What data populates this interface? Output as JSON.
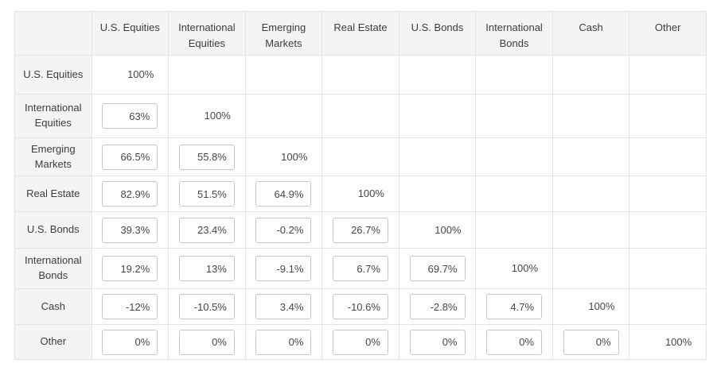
{
  "matrix": {
    "corner_label": "",
    "columns": [
      "U.S. Equities",
      "International Equities",
      "Emerging Markets",
      "Real Estate",
      "U.S. Bonds",
      "International Bonds",
      "Cash",
      "Other"
    ],
    "rows": [
      {
        "label": "U.S. Equities",
        "values": [
          "100%",
          "",
          "",
          "",
          "",
          "",
          "",
          ""
        ]
      },
      {
        "label": "International Equities",
        "values": [
          "63%",
          "100%",
          "",
          "",
          "",
          "",
          "",
          ""
        ]
      },
      {
        "label": "Emerging Markets",
        "values": [
          "66.5%",
          "55.8%",
          "100%",
          "",
          "",
          "",
          "",
          ""
        ]
      },
      {
        "label": "Real Estate",
        "values": [
          "82.9%",
          "51.5%",
          "64.9%",
          "100%",
          "",
          "",
          "",
          ""
        ]
      },
      {
        "label": "U.S. Bonds",
        "values": [
          "39.3%",
          "23.4%",
          "-0.2%",
          "26.7%",
          "100%",
          "",
          "",
          ""
        ]
      },
      {
        "label": "International Bonds",
        "values": [
          "19.2%",
          "13%",
          "-9.1%",
          "6.7%",
          "69.7%",
          "100%",
          "",
          ""
        ]
      },
      {
        "label": "Cash",
        "values": [
          "-12%",
          "-10.5%",
          "3.4%",
          "-10.6%",
          "-2.8%",
          "4.7%",
          "100%",
          ""
        ]
      },
      {
        "label": "Other",
        "values": [
          "0%",
          "0%",
          "0%",
          "0%",
          "0%",
          "0%",
          "0%",
          "100%"
        ]
      }
    ]
  },
  "colors": {
    "header_bg": "#f5f4f2",
    "grid_border": "#e3e3e3",
    "input_border": "#c6c6c6",
    "text": "#3c3c3c",
    "cell_bg": "#ffffff"
  }
}
